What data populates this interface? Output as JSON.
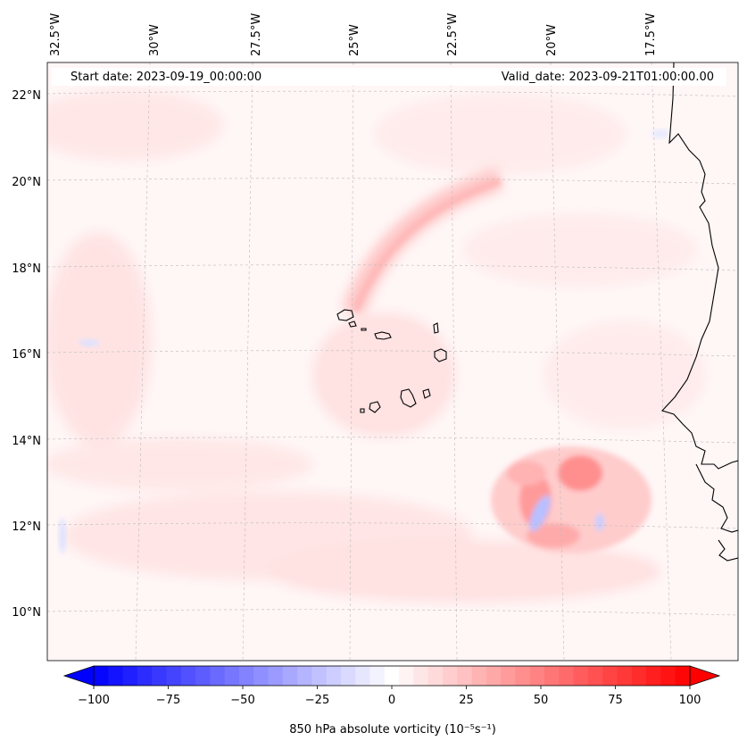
{
  "header": {
    "start_date": "Start date: 2023-09-19_00:00:00",
    "valid_date": "Valid_date: 2023-09-21T01:00:00.00"
  },
  "axes": {
    "lon_labels": [
      "32.5°W",
      "30°W",
      "27.5°W",
      "25°W",
      "22.5°W",
      "20°W",
      "17.5°W"
    ],
    "lat_labels": [
      "22°N",
      "20°N",
      "18°N",
      "16°N",
      "14°N",
      "12°N",
      "10°N"
    ]
  },
  "colorbar": {
    "ticks": [
      "−100",
      "−75",
      "−50",
      "−25",
      "0",
      "25",
      "50",
      "75",
      "100"
    ],
    "label": "850 hPa absolute vorticity (10⁻⁵s⁻¹)",
    "min": -100,
    "max": 100,
    "levels": 41,
    "neg_color": "#0000ff",
    "zero_color": "#ffffff",
    "pos_color": "#ff0000"
  }
}
